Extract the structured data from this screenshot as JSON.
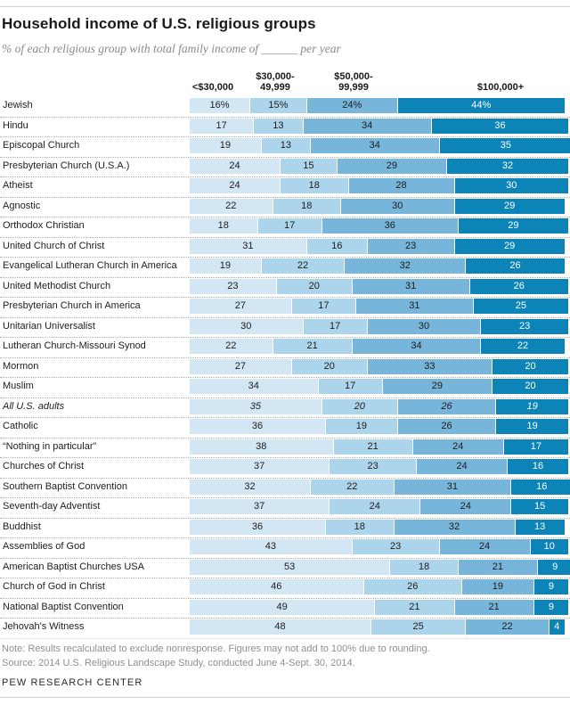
{
  "chart_data": {
    "type": "bar",
    "stacked": true,
    "orientation": "horizontal",
    "title": "Household income of U.S. religious groups",
    "subtitle": "% of each religious group with total family income of ______ per year",
    "xlim": [
      0,
      100
    ],
    "grid": false,
    "legend_position": "column-headers-top",
    "column_headers": [
      {
        "lines": [
          "<$30,000"
        ]
      },
      {
        "lines": [
          "$30,000-",
          "49,999"
        ]
      },
      {
        "lines": [
          "$50,000-",
          "99,999"
        ]
      },
      {
        "lines": [
          "$100,000+"
        ]
      }
    ],
    "categories": [
      "Jewish",
      "Hindu",
      "Episcopal Church",
      "Presbyterian Church (U.S.A.)",
      "Atheist",
      "Agnostic",
      "Orthodox Christian",
      "United Church of Christ",
      "Evangelical Lutheran Church in America",
      "United Methodist Church",
      "Presbyterian Church in America",
      "Unitarian Universalist",
      "Lutheran Church-Missouri Synod",
      "Mormon",
      "Muslim",
      "All U.S. adults",
      "Catholic",
      "“Nothing in particular”",
      "Churches of Christ",
      "Southern Baptist Convention",
      "Seventh-day Adventist",
      "Buddhist",
      "Assemblies of God",
      "American Baptist Churches USA",
      "Church of God in Christ",
      "National Baptist Convention",
      "Jehovah's Witness"
    ],
    "emphasis_category": "All U.S. adults",
    "emphasis_index": 15,
    "first_row_value_suffix": "%",
    "series": [
      {
        "name": "<$30,000",
        "values": [
          16,
          17,
          19,
          24,
          24,
          22,
          18,
          31,
          19,
          23,
          27,
          30,
          22,
          27,
          34,
          35,
          36,
          38,
          37,
          32,
          37,
          36,
          43,
          53,
          46,
          49,
          48
        ]
      },
      {
        "name": "$30,000-49,999",
        "values": [
          15,
          13,
          13,
          15,
          18,
          18,
          17,
          16,
          22,
          20,
          17,
          17,
          21,
          20,
          17,
          20,
          19,
          21,
          23,
          22,
          24,
          18,
          23,
          18,
          26,
          21,
          25
        ]
      },
      {
        "name": "$50,000-99,999",
        "values": [
          24,
          34,
          34,
          29,
          28,
          30,
          36,
          23,
          32,
          31,
          31,
          30,
          34,
          33,
          29,
          26,
          26,
          24,
          24,
          31,
          24,
          32,
          24,
          21,
          19,
          21,
          22
        ]
      },
      {
        "name": "$100,000+",
        "values": [
          44,
          36,
          35,
          32,
          30,
          29,
          29,
          29,
          26,
          26,
          25,
          23,
          22,
          20,
          20,
          19,
          19,
          17,
          16,
          16,
          15,
          13,
          10,
          9,
          9,
          9,
          4
        ]
      }
    ],
    "segment_colors": [
      "#d3e6f3",
      "#acd4ea",
      "#77b5db",
      "#0d84b8"
    ],
    "segment_text_colors": [
      "#1d1d1d",
      "#1d1d1d",
      "#1d1d1d",
      "#ffffff"
    ],
    "note": "Note: Results recalculated to exclude nonresponse. Figures may not add to 100% due to rounding.",
    "source": "Source: 2014 U.S. Religious Landscape Study, conducted June 4-Sept. 30, 2014.",
    "branding": "PEW RESEARCH CENTER"
  }
}
